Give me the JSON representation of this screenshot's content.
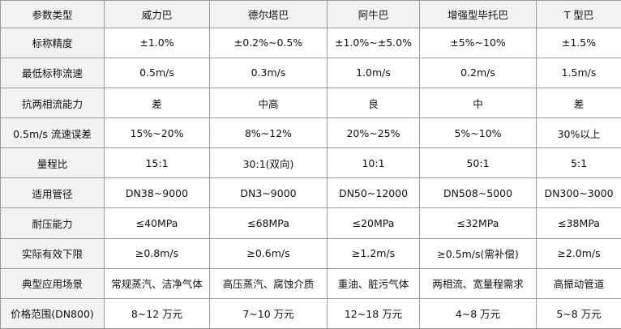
{
  "table": {
    "header": [
      "参数类型",
      "威力巴",
      "德尔塔巴",
      "阿牛巴",
      "增强型毕托巴",
      "T 型巴"
    ],
    "rows": [
      [
        "标称精度",
        "±1.0%",
        "±0.2%~0.5%",
        "±1.0%~±5.0%",
        "±5%~10%",
        "±1.5%"
      ],
      [
        "最低标称流速",
        "0.5m/s",
        "0.3m/s",
        "1.0m/s",
        "0.2m/s",
        "1.5m/s"
      ],
      [
        "抗两相流能力",
        "差",
        "中高",
        "良",
        "中",
        "差"
      ],
      [
        "0.5m/s 流速误差",
        "15%~20%",
        "8%~12%",
        "20%~25%",
        "5%~10%",
        "30%以上"
      ],
      [
        "量程比",
        "15:1",
        "30:1(双向)",
        "10:1",
        "50:1",
        "5:1"
      ],
      [
        "适用管径",
        "DN38~9000",
        "DN3~9000",
        "DN50~12000",
        "DN508~5000",
        "DN300~3000"
      ],
      [
        "耐压能力",
        "≤40MPa",
        "≤68MPa",
        "≤20MPa",
        "≤32MPa",
        "≤38MPa"
      ],
      [
        "实际有效下限",
        "≥0.8m/s",
        "≥0.6m/s",
        "≥1.2m/s",
        "≥0.5m/s(需补偿)",
        "≥2.0m/s"
      ],
      [
        "典型应用场景",
        "常规蒸汽、洁净气体",
        "高压蒸汽、腐蚀介质",
        "重油、脏污气体",
        "两相流、宽量程需求",
        "高振动管道"
      ],
      [
        "价格范围(DN800)",
        "8~12 万元",
        "7~10 万元",
        "12~18 万元",
        "4~8 万元",
        "5~8 万元"
      ]
    ]
  }
}
